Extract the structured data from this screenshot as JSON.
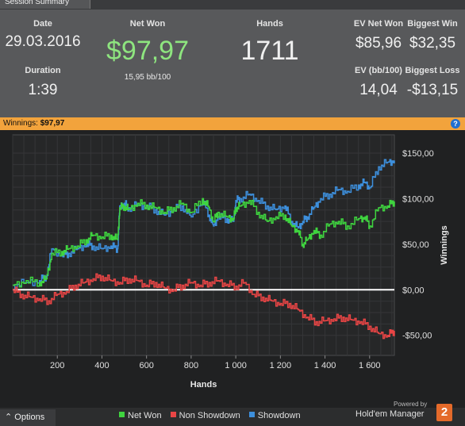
{
  "tab": {
    "label": "Session Summary"
  },
  "summary": {
    "date_label": "Date",
    "date_value": "29.03.2016",
    "duration_label": "Duration",
    "duration_value": "1:39",
    "netwon_label": "Net Won",
    "netwon_value": "$97,97",
    "netwon_sub": "15,95 bb/100",
    "hands_label": "Hands",
    "hands_value": "1711",
    "ev_label": "EV Net Won",
    "ev_value": "$85,96",
    "bigwin_label": "Biggest Win",
    "bigwin_value": "$32,35",
    "evbb_label": "EV (bb/100)",
    "evbb_value": "14,04",
    "bigloss_label": "Biggest Loss",
    "bigloss_value": "-$13,15"
  },
  "winnings_bar": {
    "label": "Winnings:",
    "value": "$97,97",
    "help": "?"
  },
  "chart_data": {
    "type": "line",
    "xlabel": "Hands",
    "ylabel": "Winnings",
    "xlim": [
      0,
      1711
    ],
    "ylim": [
      -72,
      170
    ],
    "xticks": [
      200,
      400,
      600,
      800,
      1000,
      1200,
      1400,
      1600
    ],
    "xtick_labels": [
      "200",
      "400",
      "600",
      "800",
      "1 000",
      "1 200",
      "1 400",
      "1 600"
    ],
    "yticks": [
      150,
      100,
      50,
      0,
      -50
    ],
    "ytick_labels": [
      "$150,00",
      "$100,00",
      "$50,00",
      "$0,00",
      "-$50,00"
    ],
    "grid": true,
    "series": [
      {
        "name": "Net Won",
        "color": "#3fd43f",
        "x": [
          0,
          60,
          120,
          150,
          175,
          220,
          250,
          290,
          330,
          360,
          400,
          440,
          470,
          480,
          500,
          520,
          560,
          600,
          640,
          680,
          720,
          760,
          800,
          850,
          880,
          900,
          920,
          960,
          990,
          1000,
          1020,
          1060,
          1100,
          1140,
          1180,
          1220,
          1250,
          1280,
          1300,
          1320,
          1350,
          1380,
          1420,
          1460,
          1500,
          1550,
          1580,
          1600,
          1640,
          1680,
          1711
        ],
        "y": [
          5,
          10,
          8,
          12,
          40,
          42,
          45,
          48,
          55,
          60,
          58,
          60,
          55,
          90,
          92,
          88,
          95,
          93,
          90,
          85,
          90,
          95,
          85,
          100,
          90,
          75,
          85,
          80,
          78,
          90,
          92,
          98,
          85,
          75,
          80,
          82,
          70,
          65,
          50,
          55,
          65,
          60,
          72,
          75,
          70,
          78,
          80,
          70,
          90,
          92,
          97
        ]
      },
      {
        "name": "Non Showdown",
        "color": "#e84545",
        "x": [
          0,
          40,
          80,
          120,
          160,
          200,
          240,
          280,
          320,
          360,
          400,
          440,
          480,
          520,
          560,
          600,
          640,
          680,
          720,
          760,
          800,
          840,
          880,
          920,
          960,
          1000,
          1040,
          1080,
          1120,
          1160,
          1200,
          1240,
          1280,
          1320,
          1360,
          1400,
          1440,
          1480,
          1520,
          1560,
          1600,
          1640,
          1680,
          1711
        ],
        "y": [
          0,
          -5,
          -8,
          -10,
          -12,
          -5,
          -2,
          5,
          8,
          12,
          15,
          10,
          8,
          12,
          10,
          5,
          8,
          2,
          0,
          5,
          8,
          5,
          8,
          10,
          6,
          4,
          8,
          -5,
          -8,
          -12,
          -15,
          -15,
          -22,
          -30,
          -35,
          -34,
          -32,
          -30,
          -33,
          -35,
          -40,
          -48,
          -50,
          -45
        ]
      },
      {
        "name": "Showdown",
        "color": "#3d8fdc",
        "x": [
          0,
          60,
          120,
          150,
          175,
          220,
          250,
          290,
          330,
          360,
          400,
          440,
          470,
          480,
          500,
          520,
          560,
          600,
          640,
          680,
          720,
          760,
          800,
          850,
          880,
          900,
          920,
          960,
          990,
          1000,
          1020,
          1060,
          1100,
          1140,
          1180,
          1220,
          1250,
          1280,
          1300,
          1320,
          1350,
          1380,
          1420,
          1460,
          1500,
          1550,
          1580,
          1600,
          1640,
          1680,
          1711
        ],
        "y": [
          5,
          8,
          10,
          15,
          45,
          38,
          40,
          45,
          50,
          48,
          45,
          48,
          45,
          92,
          95,
          90,
          93,
          92,
          88,
          82,
          88,
          92,
          80,
          98,
          82,
          70,
          80,
          78,
          75,
          98,
          100,
          105,
          98,
          92,
          88,
          92,
          75,
          68,
          75,
          80,
          90,
          100,
          105,
          110,
          108,
          115,
          118,
          112,
          135,
          140,
          142
        ]
      }
    ]
  },
  "footer": {
    "options_label": "Options",
    "options_arrow": "⌃",
    "powered": "Powered by",
    "brand": "Hold'em Manager",
    "logo": "2"
  }
}
